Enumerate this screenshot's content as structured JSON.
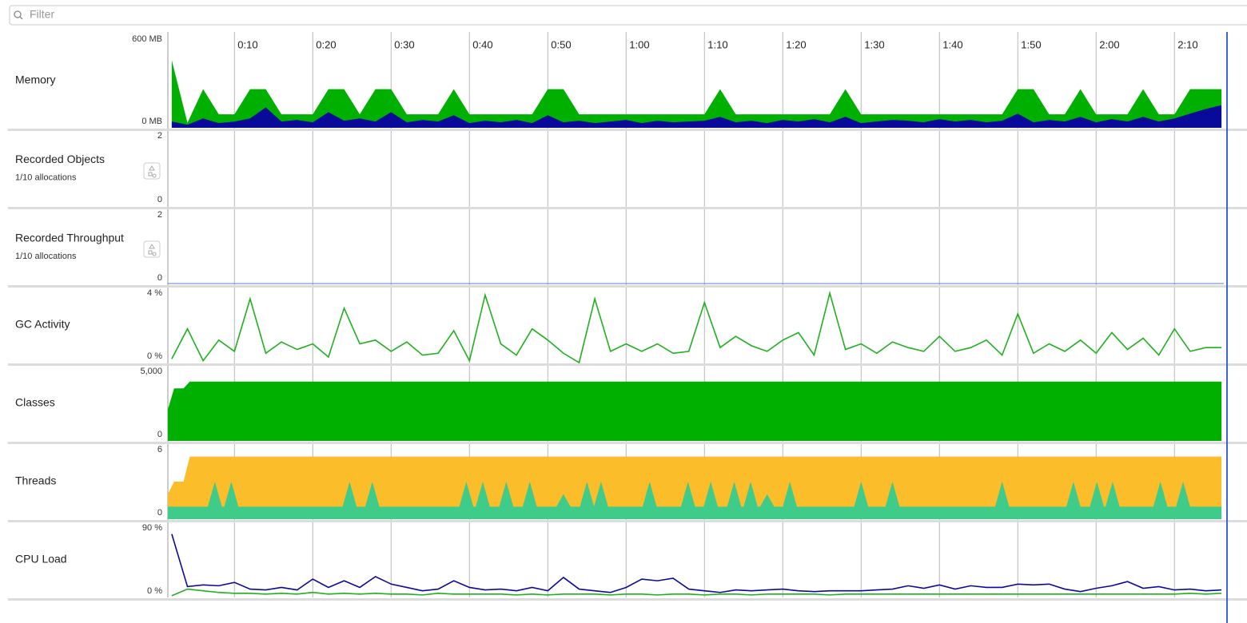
{
  "filter_placeholder": "Filter",
  "chart_data": [
    {
      "type": "area",
      "title": "Memory",
      "xlim": [
        1.5,
        136.3
      ],
      "xticks": [
        {
          "value": 10,
          "label": "0:10"
        },
        {
          "value": 20,
          "label": "0:20"
        },
        {
          "value": 30,
          "label": "0:30"
        },
        {
          "value": 40,
          "label": "0:40"
        },
        {
          "value": 50,
          "label": "0:50"
        },
        {
          "value": 60,
          "label": "1:00"
        },
        {
          "value": 70,
          "label": "1:10"
        },
        {
          "value": 80,
          "label": "1:20"
        },
        {
          "value": 90,
          "label": "1:30"
        },
        {
          "value": 100,
          "label": "1:40"
        },
        {
          "value": 110,
          "label": "1:50"
        },
        {
          "value": 120,
          "label": "2:00"
        },
        {
          "value": 130,
          "label": "2:10"
        }
      ],
      "ylim": [
        0,
        600
      ],
      "yticks": [
        {
          "value": 0,
          "label": "0 MB"
        },
        {
          "value": 600,
          "label": "600 MB"
        }
      ],
      "x": [
        2,
        4,
        6,
        8,
        10,
        12,
        14,
        16,
        18,
        20,
        22,
        24,
        26,
        28,
        30,
        32,
        34,
        36,
        38,
        40,
        42,
        44,
        46,
        48,
        50,
        52,
        54,
        56,
        58,
        60,
        62,
        64,
        66,
        68,
        70,
        72,
        74,
        76,
        78,
        80,
        82,
        84,
        86,
        88,
        90,
        92,
        94,
        96,
        98,
        100,
        102,
        104,
        106,
        108,
        110,
        112,
        114,
        116,
        118,
        120,
        122,
        124,
        126,
        128,
        130,
        132,
        134,
        136
      ],
      "series": [
        {
          "color": "#00b000",
          "values": [
            430,
            32,
            246,
            86,
            86,
            246,
            246,
            86,
            86,
            86,
            246,
            246,
            86,
            246,
            246,
            86,
            86,
            86,
            246,
            86,
            86,
            86,
            86,
            86,
            246,
            246,
            86,
            86,
            86,
            86,
            86,
            86,
            86,
            86,
            86,
            246,
            86,
            86,
            86,
            86,
            86,
            86,
            86,
            246,
            86,
            86,
            86,
            86,
            86,
            86,
            86,
            86,
            86,
            86,
            246,
            246,
            86,
            86,
            246,
            86,
            86,
            86,
            246,
            86,
            86,
            246,
            246,
            246
          ]
        },
        {
          "color": "#0a0a9a",
          "values": [
            40,
            20,
            60,
            30,
            40,
            60,
            130,
            40,
            50,
            35,
            100,
            45,
            60,
            40,
            100,
            35,
            50,
            40,
            80,
            30,
            45,
            35,
            50,
            30,
            80,
            35,
            45,
            30,
            40,
            50,
            30,
            45,
            35,
            40,
            45,
            70,
            35,
            45,
            30,
            50,
            40,
            55,
            35,
            70,
            30,
            40,
            50,
            45,
            35,
            55,
            40,
            50,
            35,
            45,
            90,
            35,
            50,
            40,
            70,
            35,
            55,
            40,
            70,
            40,
            60,
            90,
            120,
            144
          ]
        }
      ]
    },
    {
      "type": "line",
      "title": "Recorded Objects",
      "subtitle": "1/10 allocations",
      "ylim": [
        0,
        2
      ],
      "yticks": [
        0,
        2
      ]
    },
    {
      "type": "line",
      "title": "Recorded Throughput",
      "subtitle": "1/10 allocations",
      "ylim": [
        0,
        2
      ],
      "yticks": [
        0,
        2
      ]
    },
    {
      "type": "line",
      "title": "GC Activity",
      "ylim": [
        0,
        4
      ],
      "yticks": [
        {
          "value": 0,
          "label": "0 %"
        },
        {
          "value": 4,
          "label": "4 %"
        }
      ],
      "x": [
        2,
        4,
        6,
        8,
        10,
        12,
        14,
        16,
        18,
        20,
        22,
        24,
        26,
        28,
        30,
        32,
        34,
        36,
        38,
        40,
        42,
        44,
        46,
        48,
        50,
        52,
        54,
        56,
        58,
        60,
        62,
        64,
        66,
        68,
        70,
        72,
        74,
        76,
        78,
        80,
        82,
        84,
        86,
        88,
        90,
        92,
        94,
        96,
        98,
        100,
        102,
        104,
        106,
        108,
        110,
        112,
        114,
        116,
        118,
        120,
        122,
        124,
        126,
        128,
        130,
        132,
        134,
        136
      ],
      "series": [
        {
          "color": "#1fb01f",
          "values": [
            0.2,
            1.8,
            0.1,
            1.2,
            0.6,
            3.4,
            0.5,
            1.1,
            0.7,
            1.0,
            0.3,
            2.9,
            1.0,
            1.2,
            0.6,
            1.1,
            0.4,
            0.5,
            1.7,
            0.1,
            3.6,
            1.0,
            0.4,
            1.8,
            1.2,
            0.5,
            0.0,
            3.4,
            0.6,
            1.0,
            0.6,
            1.0,
            0.5,
            0.6,
            3.2,
            0.8,
            1.4,
            0.9,
            0.6,
            1.2,
            1.6,
            0.4,
            3.7,
            0.7,
            1.0,
            0.5,
            1.1,
            0.8,
            0.6,
            1.4,
            0.6,
            0.8,
            1.2,
            0.4,
            2.6,
            0.5,
            1.0,
            0.6,
            1.2,
            0.5,
            1.6,
            0.7,
            1.3,
            0.4,
            1.8,
            0.6,
            0.8,
            0.8
          ]
        }
      ]
    },
    {
      "type": "area",
      "title": "Classes",
      "ylim": [
        0,
        5000
      ],
      "yticks": [
        0,
        {
          "value": 5000,
          "label": "5,000"
        }
      ],
      "x": [
        1.5,
        2.3,
        3.5,
        4.3,
        136
      ],
      "series": [
        {
          "color": "#00b000",
          "values": [
            2100,
            3500,
            3500,
            3950,
            3950
          ]
        }
      ]
    },
    {
      "type": "area",
      "title": "Threads",
      "ylim": [
        0,
        6
      ],
      "yticks": [
        0,
        6
      ],
      "series": [
        {
          "color": "#fbbd2a",
          "x": [
            1.5,
            2.3,
            3.5,
            4.3,
            136
          ],
          "values": [
            2,
            3,
            3,
            5,
            5
          ]
        },
        {
          "color": "#3fcb8a",
          "x": [
            1.5,
            6.6,
            7.5,
            8.4,
            8.7,
            9.6,
            10.5,
            23.8,
            24.7,
            25.6,
            26.7,
            27.6,
            28.5,
            38.7,
            39.6,
            40.5,
            40.8,
            41.7,
            42.6,
            43.8,
            44.7,
            45.6,
            46.8,
            47.7,
            48.6,
            51.1,
            52,
            52.9,
            54.1,
            55,
            55.9,
            55.9,
            56.8,
            57.7,
            62.1,
            63,
            63.9,
            67,
            67.9,
            68.8,
            69.9,
            70.8,
            71.7,
            72.9,
            73.8,
            74.7,
            75,
            75.9,
            76.8,
            77.1,
            78,
            78.9,
            80,
            80.9,
            81.8,
            89.1,
            90,
            90.9,
            93.1,
            94,
            94.9,
            107.1,
            108,
            108.9,
            116.2,
            117.1,
            118,
            119.2,
            120.1,
            121,
            121.2,
            122.1,
            123,
            127.3,
            128.2,
            129.1,
            130.2,
            131.1,
            132,
            136
          ],
          "values": [
            1,
            1,
            3,
            1,
            1,
            3,
            1,
            1,
            3,
            1,
            1,
            3,
            1,
            1,
            3,
            1,
            1,
            3,
            1,
            1,
            3,
            1,
            1,
            3,
            1,
            1,
            2,
            1,
            1,
            3,
            1,
            1,
            3,
            1,
            1,
            3,
            1,
            1,
            3,
            1,
            1,
            3,
            1,
            1,
            3,
            1,
            1,
            3,
            1,
            1,
            2,
            1,
            1,
            3,
            1,
            1,
            3,
            1,
            1,
            3,
            1,
            1,
            3,
            1,
            1,
            3,
            1,
            1,
            3,
            1,
            1,
            3,
            1,
            1,
            3,
            1,
            1,
            3,
            1,
            1
          ]
        }
      ]
    },
    {
      "type": "line",
      "title": "CPU Load",
      "ylim": [
        0,
        90
      ],
      "yticks": [
        {
          "value": 0,
          "label": "0 %"
        },
        {
          "value": 90,
          "label": "90 %"
        }
      ],
      "x": [
        2,
        4,
        6,
        8,
        10,
        12,
        14,
        16,
        18,
        20,
        22,
        24,
        26,
        28,
        30,
        32,
        34,
        36,
        38,
        40,
        42,
        44,
        46,
        48,
        50,
        52,
        54,
        56,
        58,
        60,
        62,
        64,
        66,
        68,
        70,
        72,
        74,
        76,
        78,
        80,
        82,
        84,
        86,
        88,
        90,
        92,
        94,
        96,
        98,
        100,
        102,
        104,
        106,
        108,
        110,
        112,
        114,
        116,
        118,
        120,
        122,
        124,
        126,
        128,
        130,
        132,
        134,
        136
      ],
      "series": [
        {
          "color": "#0a0a9a",
          "values": [
            76,
            13,
            15,
            14,
            18,
            10,
            9,
            12,
            9,
            22,
            12,
            20,
            12,
            25,
            16,
            12,
            8,
            10,
            20,
            12,
            9,
            10,
            8,
            12,
            8,
            24,
            10,
            8,
            6,
            12,
            22,
            20,
            23,
            10,
            8,
            6,
            9,
            8,
            9,
            10,
            8,
            7,
            8,
            8,
            8,
            9,
            10,
            14,
            11,
            15,
            10,
            14,
            12,
            12,
            16,
            15,
            16,
            10,
            7,
            11,
            14,
            19,
            11,
            13,
            9,
            10,
            8,
            9
          ]
        },
        {
          "color": "#1fb01f",
          "values": [
            2,
            10,
            8,
            6,
            5,
            5,
            4,
            5,
            4,
            6,
            4,
            5,
            4,
            5,
            4,
            4,
            3,
            5,
            4,
            4,
            4,
            4,
            3,
            4,
            3,
            4,
            4,
            4,
            3,
            4,
            4,
            3,
            4,
            4,
            3,
            4,
            4,
            3,
            4,
            4,
            4,
            4,
            3,
            4,
            4,
            4,
            4,
            4,
            4,
            4,
            4,
            4,
            4,
            4,
            4,
            4,
            4,
            4,
            4,
            4,
            4,
            4,
            4,
            4,
            4,
            5,
            4,
            5
          ]
        }
      ]
    }
  ]
}
